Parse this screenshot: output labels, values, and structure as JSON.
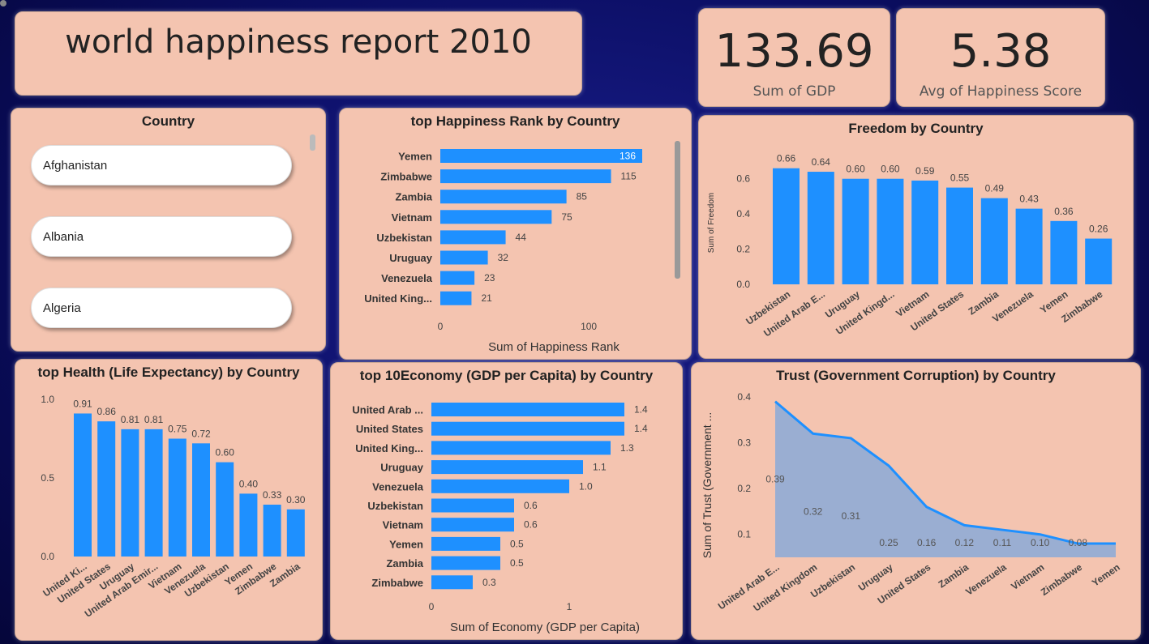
{
  "title": "world happiness report 2010",
  "kpis": {
    "gdp": {
      "value": "133.69",
      "label": "Sum of GDP"
    },
    "happiness": {
      "value": "5.38",
      "label": "Avg of Happiness Score"
    }
  },
  "slicer": {
    "title": "Country",
    "items": [
      "Afghanistan",
      "Albania",
      "Algeria"
    ]
  },
  "colors": {
    "bar": "#1e90ff",
    "card": "#f4c4b0",
    "area": "#9aaed2"
  },
  "chart_data": [
    {
      "id": "happiness_rank",
      "type": "bar",
      "orientation": "horizontal",
      "title": "top Happiness Rank by Country",
      "categories": [
        "Yemen",
        "Zimbabwe",
        "Zambia",
        "Vietnam",
        "Uzbekistan",
        "Uruguay",
        "Venezuela",
        "United King..."
      ],
      "values": [
        136,
        115,
        85,
        75,
        44,
        32,
        23,
        21
      ],
      "labels": [
        "136",
        "115",
        "85",
        "75",
        "44",
        "32",
        "23",
        "21"
      ],
      "xlabel": "Sum of Happiness Rank",
      "xticks": [
        0,
        100
      ],
      "xlim": [
        0,
        136
      ]
    },
    {
      "id": "freedom",
      "type": "bar",
      "title": "Freedom by Country",
      "categories": [
        "Uzbekistan",
        "United Arab E...",
        "Uruguay",
        "United Kingd...",
        "Vietnam",
        "United States",
        "Zambia",
        "Venezuela",
        "Yemen",
        "Zimbabwe"
      ],
      "values": [
        0.66,
        0.64,
        0.6,
        0.6,
        0.59,
        0.55,
        0.49,
        0.43,
        0.36,
        0.26
      ],
      "labels": [
        "0.66",
        "0.64",
        "0.60",
        "0.60",
        "0.59",
        "0.55",
        "0.49",
        "0.43",
        "0.36",
        "0.26"
      ],
      "ylabel": "Sum of Freedom",
      "yticks": [
        "0.0",
        "0.2",
        "0.4",
        "0.6"
      ],
      "ylim": [
        0,
        0.7
      ]
    },
    {
      "id": "health",
      "type": "bar",
      "title": "top Health (Life Expectancy) by Country",
      "categories": [
        "United Ki...",
        "United States",
        "Uruguay",
        "United Arab Emir...",
        "Vietnam",
        "Venezuela",
        "Uzbekistan",
        "Yemen",
        "Zimbabwe",
        "Zambia"
      ],
      "values": [
        0.91,
        0.86,
        0.81,
        0.81,
        0.75,
        0.72,
        0.6,
        0.4,
        0.33,
        0.3
      ],
      "labels": [
        "0.91",
        "0.86",
        "0.81",
        "0.81",
        "0.75",
        "0.72",
        "0.60",
        "0.40",
        "0.33",
        "0.30"
      ],
      "yticks": [
        "0.0",
        "0.5",
        "1.0"
      ],
      "ylim": [
        0,
        1.0
      ]
    },
    {
      "id": "economy",
      "type": "bar",
      "orientation": "horizontal",
      "title": "top 10Economy (GDP per Capita) by Country",
      "categories": [
        "United Arab ...",
        "United States",
        "United King...",
        "Uruguay",
        "Venezuela",
        "Uzbekistan",
        "Vietnam",
        "Yemen",
        "Zambia",
        "Zimbabwe"
      ],
      "values": [
        1.4,
        1.4,
        1.3,
        1.1,
        1.0,
        0.6,
        0.6,
        0.5,
        0.5,
        0.3
      ],
      "labels": [
        "1.4",
        "1.4",
        "1.3",
        "1.1",
        "1.0",
        "0.6",
        "0.6",
        "0.5",
        "0.5",
        "0.3"
      ],
      "xlabel": "Sum of Economy (GDP per Capita)",
      "xticks": [
        0,
        1
      ],
      "xlim": [
        0,
        1.4
      ]
    },
    {
      "id": "trust",
      "type": "area",
      "title": "Trust (Government Corruption) by Country",
      "categories": [
        "United Arab E...",
        "United Kingdom",
        "Uzbekistan",
        "Uruguay",
        "United States",
        "Zambia",
        "Venezuela",
        "Vietnam",
        "Zimbabwe",
        "Yemen"
      ],
      "values": [
        0.39,
        0.32,
        0.31,
        0.25,
        0.16,
        0.12,
        0.11,
        0.1,
        0.08,
        0.08
      ],
      "labels": [
        "0.39",
        "0.32",
        "0.31",
        "0.25",
        "0.16",
        "0.12",
        "0.11",
        "0.10",
        "0.08",
        ""
      ],
      "ylabel": "Sum of Trust (Government ...",
      "yticks": [
        "0.1",
        "0.2",
        "0.3",
        "0.4"
      ],
      "ylim": [
        0.05,
        0.4
      ]
    }
  ]
}
